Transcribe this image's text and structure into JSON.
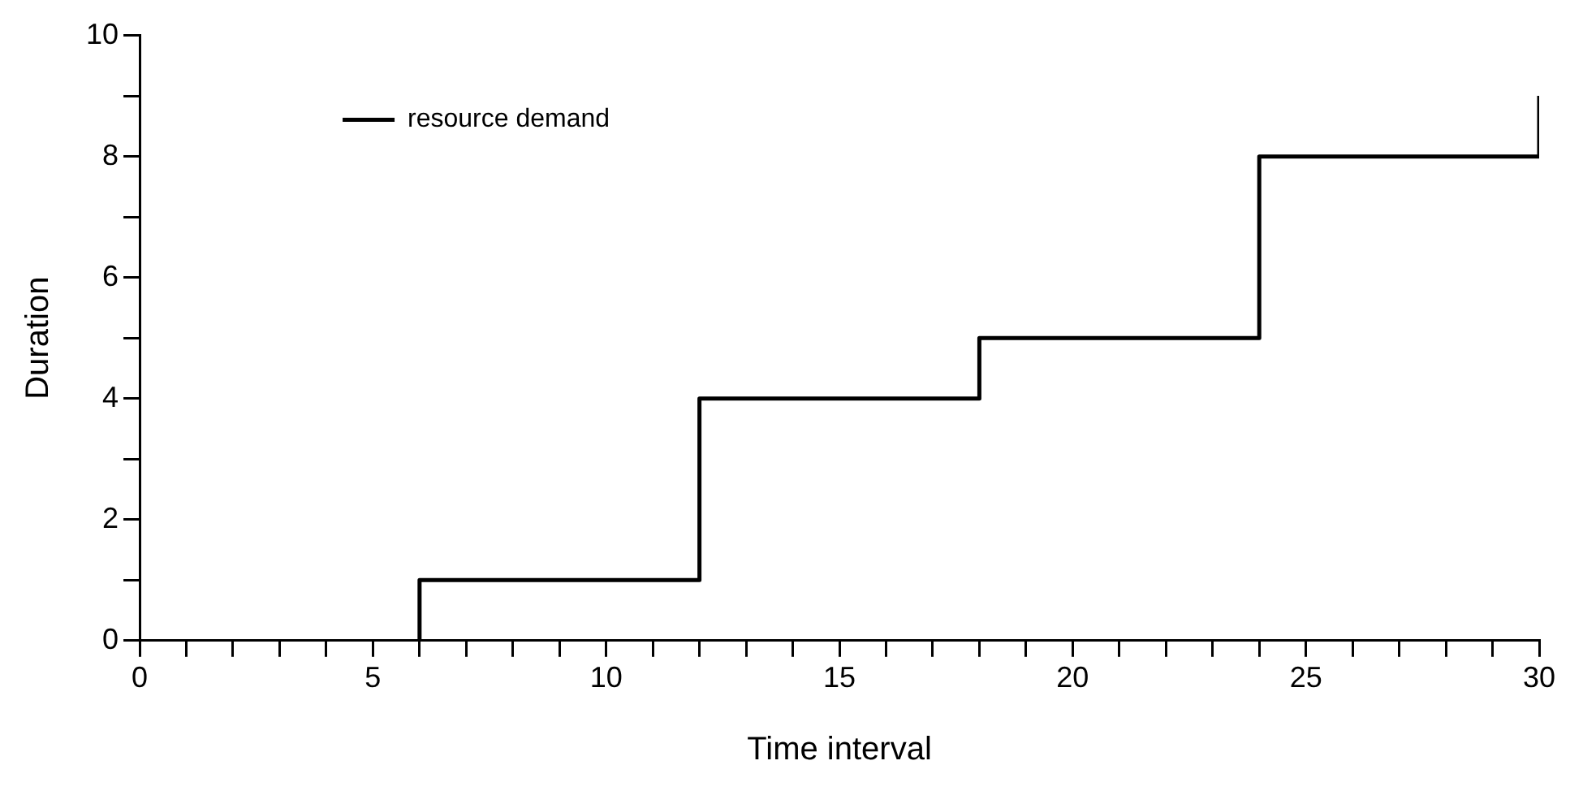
{
  "chart_data": {
    "type": "step",
    "xlabel": "Time interval",
    "ylabel": "Duration",
    "x": [
      6,
      12,
      18,
      24,
      30,
      30
    ],
    "series": [
      {
        "name": "resource demand",
        "color": "#000000",
        "values": [
          0,
          1,
          4,
          5,
          8,
          9
        ]
      }
    ],
    "xlim": [
      0,
      30
    ],
    "xticks": [
      0,
      {
        "value": 1,
        "label": null
      },
      {
        "value": 2,
        "label": null
      },
      {
        "value": 3,
        "label": null
      },
      {
        "value": 4,
        "label": null
      },
      5,
      {
        "value": 6,
        "label": null
      },
      {
        "value": 7,
        "label": null
      },
      {
        "value": 8,
        "label": null
      },
      {
        "value": 9,
        "label": null
      },
      10,
      {
        "value": 11,
        "label": null
      },
      {
        "value": 12,
        "label": null
      },
      {
        "value": 13,
        "label": null
      },
      {
        "value": 14,
        "label": null
      },
      15,
      {
        "value": 16,
        "label": null
      },
      {
        "value": 17,
        "label": null
      },
      {
        "value": 18,
        "label": null
      },
      {
        "value": 19,
        "label": null
      },
      20,
      {
        "value": 21,
        "label": null
      },
      {
        "value": 22,
        "label": null
      },
      {
        "value": 23,
        "label": null
      },
      {
        "value": 24,
        "label": null
      },
      25,
      {
        "value": 26,
        "label": null
      },
      {
        "value": 27,
        "label": null
      },
      {
        "value": 28,
        "label": null
      },
      {
        "value": 29,
        "label": null
      },
      30
    ],
    "ylim": [
      0,
      10
    ],
    "yticks": [
      0,
      {
        "value": 1,
        "label": null
      },
      2,
      {
        "value": 3,
        "label": null
      },
      4,
      {
        "value": 5,
        "label": null
      },
      6,
      {
        "value": 7,
        "label": null
      },
      8,
      {
        "value": 9,
        "label": null
      },
      10
    ],
    "grid": false,
    "legend": "top left",
    "marker": "none",
    "line_style": "solid"
  }
}
